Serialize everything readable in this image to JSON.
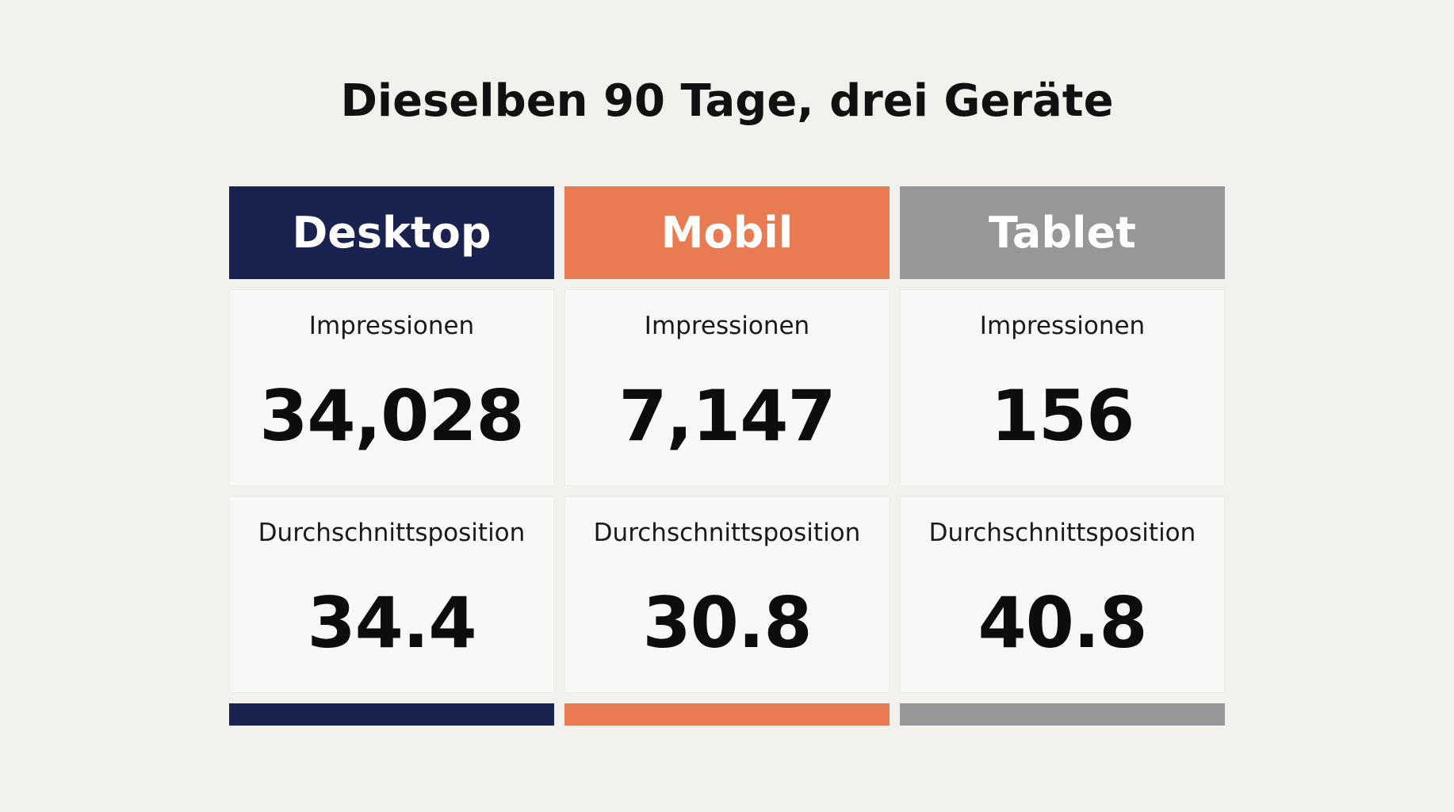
{
  "title": "Dieselben 90 Tage, drei Geräte",
  "colors": {
    "desktop": "#1a2350",
    "mobil": "#e87b51",
    "tablet": "#959798"
  },
  "columns": [
    {
      "name": "Desktop",
      "color": "#1a2350",
      "impressions_label": "Impressionen",
      "impressions_value": "34,028",
      "position_label": "Durchschnittsposition",
      "position_value": "34.4"
    },
    {
      "name": "Mobil",
      "color": "#e87b51",
      "impressions_label": "Impressionen",
      "impressions_value": "7,147",
      "position_label": "Durchschnittsposition",
      "position_value": "30.8"
    },
    {
      "name": "Tablet",
      "color": "#959798",
      "impressions_label": "Impressionen",
      "impressions_value": "156",
      "position_label": "Durchschnittsposition",
      "position_value": "40.8"
    }
  ]
}
